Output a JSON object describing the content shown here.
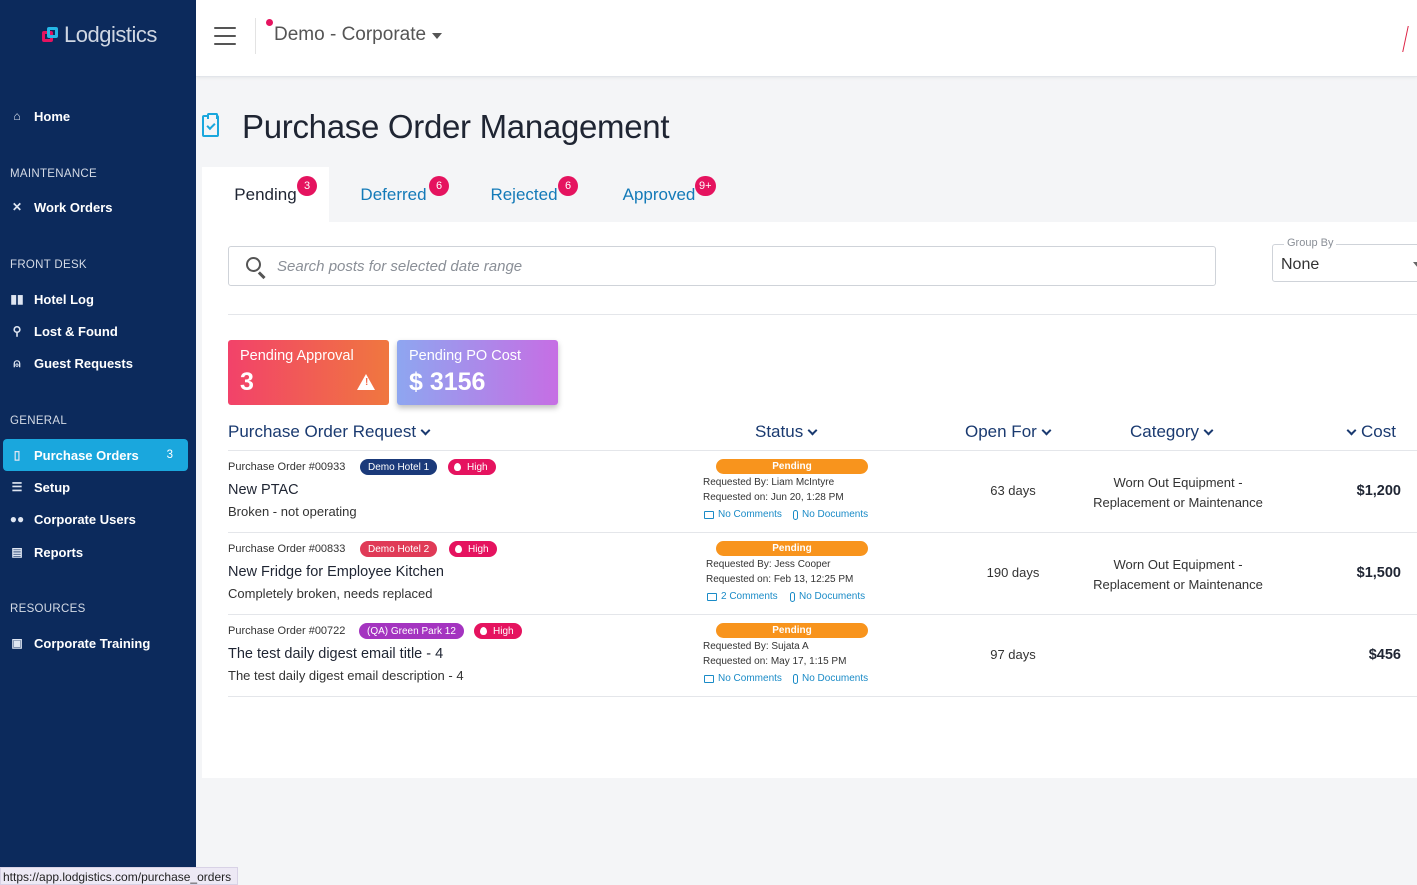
{
  "app": {
    "logo_text": "Lodgistics"
  },
  "topbar": {
    "org": "Demo - Corporate"
  },
  "sidebar": {
    "home": "Home",
    "sections": {
      "maintenance": "MAINTENANCE",
      "front_desk": "FRONT DESK",
      "general": "GENERAL",
      "resources": "RESOURCES"
    },
    "items": {
      "work_orders": "Work Orders",
      "hotel_log": "Hotel Log",
      "lost_found": "Lost & Found",
      "guest_requests": "Guest Requests",
      "purchase_orders": "Purchase Orders",
      "purchase_orders_count": "3",
      "setup": "Setup",
      "corporate_users": "Corporate Users",
      "reports": "Reports",
      "corporate_training": "Corporate Training"
    }
  },
  "page": {
    "title": "Purchase Order Management"
  },
  "tabs": [
    {
      "label": "Pending",
      "badge": "3"
    },
    {
      "label": "Deferred",
      "badge": "6"
    },
    {
      "label": "Rejected",
      "badge": "6"
    },
    {
      "label": "Approved",
      "badge": "9+"
    }
  ],
  "search": {
    "placeholder": "Search posts for selected date range"
  },
  "group_by": {
    "label": "Group By",
    "value": "None"
  },
  "stats": {
    "pending_approval_label": "Pending Approval",
    "pending_approval_value": "3",
    "pending_cost_label": "Pending PO Cost",
    "pending_cost_value": "$ 3156"
  },
  "table": {
    "headers": {
      "request": "Purchase Order Request",
      "status": "Status",
      "open_for": "Open For",
      "category": "Category",
      "cost": "Cost"
    },
    "rows": [
      {
        "po_number": "Purchase Order #00933",
        "hotel": "Demo Hotel 1",
        "priority": "High",
        "title": "New PTAC",
        "description": "Broken - not operating",
        "status": "Pending",
        "requested_by": "Requested By: Liam McIntyre",
        "requested_on": "Requested on: Jun 20, 1:28 PM",
        "comments": "No Comments",
        "documents": "No Documents",
        "open_for": "63 days",
        "category_line1": "Worn Out Equipment -",
        "category_line2": "Replacement or Maintenance",
        "cost": "$1,200"
      },
      {
        "po_number": "Purchase Order #00833",
        "hotel": "Demo Hotel 2",
        "priority": "High",
        "title": "New Fridge for Employee Kitchen",
        "description": "Completely broken, needs replaced",
        "status": "Pending",
        "requested_by": "Requested By: Jess Cooper",
        "requested_on": "Requested on: Feb 13, 12:25 PM",
        "comments": "2 Comments",
        "documents": "No Documents",
        "open_for": "190 days",
        "category_line1": "Worn Out Equipment -",
        "category_line2": "Replacement or Maintenance",
        "cost": "$1,500"
      },
      {
        "po_number": "Purchase Order #00722",
        "hotel": "(QA) Green Park 12",
        "priority": "High",
        "title": "The test daily digest email title - 4",
        "description": "The test daily digest email description - 4",
        "status": "Pending",
        "requested_by": "Requested By: Sujata A",
        "requested_on": "Requested on: May 17, 1:15 PM",
        "comments": "No Comments",
        "documents": "No Documents",
        "open_for": "97 days",
        "category_line1": "",
        "category_line2": "",
        "cost": "$456"
      }
    ]
  },
  "statusbar": {
    "url": "https://app.lodgistics.com/purchase_orders"
  },
  "colors": {
    "sidebar": "#0c2a5c",
    "accent": "#1aa7dd",
    "badge": "#e5135f",
    "pending": "#f8941d",
    "hotel1": "#1b3a7a",
    "hotel2": "#e03a57",
    "hotel3": "#a434c0"
  }
}
